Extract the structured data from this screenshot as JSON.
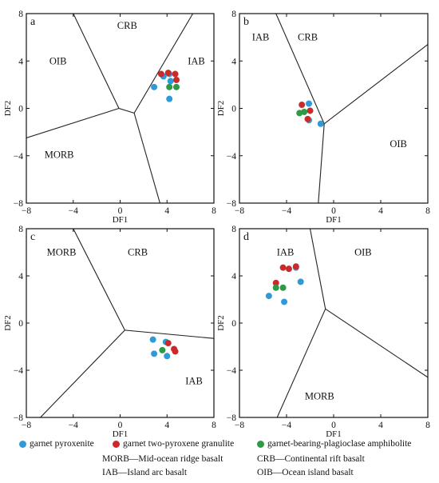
{
  "colors": {
    "garnet_pyroxenite": "#2f9ad8",
    "garnet_two_pyroxene_granulite": "#cc2a2a",
    "garnet_bearing_plagioclase_amphibolite": "#2e9a46",
    "boundary_line": "#222222",
    "frame": "#111111"
  },
  "chart_data": [
    {
      "panel": "a",
      "type": "scatter",
      "xlabel": "DF1",
      "ylabel": "DF2",
      "xlim": [
        -8,
        8
      ],
      "ylim": [
        -8,
        8
      ],
      "xticks": [
        -8,
        -4,
        0,
        4,
        8
      ],
      "yticks": [
        -8,
        -4,
        0,
        4,
        8
      ],
      "field_labels": [
        {
          "text": "CRB",
          "x": 0.6,
          "y": 7
        },
        {
          "text": "OIB",
          "x": -5.3,
          "y": 4
        },
        {
          "text": "IAB",
          "x": 6.5,
          "y": 4
        },
        {
          "text": "MORB",
          "x": -5.2,
          "y": -3.9
        }
      ],
      "boundaries": [
        [
          [
            -4,
            8
          ],
          [
            -0.1,
            0
          ],
          [
            1.2,
            -0.4
          ],
          [
            6.2,
            8
          ]
        ],
        [
          [
            -8,
            -2.5
          ],
          [
            -0.1,
            0
          ]
        ],
        [
          [
            1.2,
            -0.4
          ],
          [
            3.4,
            -8
          ]
        ]
      ],
      "series": [
        {
          "key": "garnet_pyroxenite",
          "points": [
            [
              3.7,
              2.7
            ],
            [
              4.2,
              2.9
            ],
            [
              4.3,
              2.3
            ],
            [
              2.9,
              1.8
            ],
            [
              4.2,
              0.8
            ]
          ]
        },
        {
          "key": "garnet_two_pyroxene_granulite",
          "points": [
            [
              3.5,
              2.9
            ],
            [
              4.1,
              3.0
            ],
            [
              4.7,
              2.9
            ],
            [
              4.8,
              2.4
            ]
          ]
        },
        {
          "key": "garnet_bearing_plagioclase_amphibolite",
          "points": [
            [
              4.2,
              1.8
            ],
            [
              4.8,
              1.8
            ]
          ]
        }
      ]
    },
    {
      "panel": "b",
      "type": "scatter",
      "xlabel": "DF1",
      "ylabel": "DF2",
      "xlim": [
        -8,
        8
      ],
      "ylim": [
        -8,
        8
      ],
      "xticks": [
        -8,
        -4,
        0,
        4,
        8
      ],
      "yticks": [
        -8,
        -4,
        0,
        4,
        8
      ],
      "field_labels": [
        {
          "text": "IAB",
          "x": -6.2,
          "y": 6
        },
        {
          "text": "CRB",
          "x": -2.2,
          "y": 6
        },
        {
          "text": "OIB",
          "x": 5.5,
          "y": -3
        }
      ],
      "boundaries": [
        [
          [
            -4.9,
            8
          ],
          [
            -0.8,
            -1.3
          ],
          [
            8,
            5.4
          ]
        ],
        [
          [
            -0.8,
            -1.3
          ],
          [
            -1.3,
            -8
          ]
        ]
      ],
      "series": [
        {
          "key": "garnet_pyroxenite",
          "points": [
            [
              -2.1,
              0.4
            ],
            [
              -2.1,
              -1.0
            ],
            [
              -1.1,
              -1.3
            ]
          ]
        },
        {
          "key": "garnet_two_pyroxene_granulite",
          "points": [
            [
              -2.7,
              0.3
            ],
            [
              -2.0,
              -0.2
            ],
            [
              -2.2,
              -0.9
            ]
          ]
        },
        {
          "key": "garnet_bearing_plagioclase_amphibolite",
          "points": [
            [
              -2.9,
              -0.4
            ],
            [
              -2.5,
              -0.3
            ]
          ]
        }
      ]
    },
    {
      "panel": "c",
      "type": "scatter",
      "xlabel": "DF1",
      "ylabel": "DF2",
      "xlim": [
        -8,
        8
      ],
      "ylim": [
        -8,
        8
      ],
      "xticks": [
        -8,
        -4,
        0,
        4,
        8
      ],
      "yticks": [
        -8,
        -4,
        0,
        4,
        8
      ],
      "field_labels": [
        {
          "text": "MORB",
          "x": -5,
          "y": 6
        },
        {
          "text": "CRB",
          "x": 1.5,
          "y": 6
        },
        {
          "text": "IAB",
          "x": 6.3,
          "y": -4.9
        }
      ],
      "boundaries": [
        [
          [
            -4,
            8
          ],
          [
            0.4,
            -0.6
          ],
          [
            8,
            -1.3
          ]
        ],
        [
          [
            0.4,
            -0.6
          ],
          [
            -6.8,
            -8
          ]
        ]
      ],
      "series": [
        {
          "key": "garnet_pyroxenite",
          "points": [
            [
              2.8,
              -1.4
            ],
            [
              3.9,
              -1.6
            ],
            [
              2.9,
              -2.6
            ],
            [
              4.0,
              -2.8
            ]
          ]
        },
        {
          "key": "garnet_two_pyroxene_granulite",
          "points": [
            [
              4.1,
              -1.7
            ],
            [
              4.6,
              -2.2
            ],
            [
              4.7,
              -2.4
            ]
          ]
        },
        {
          "key": "garnet_bearing_plagioclase_amphibolite",
          "points": [
            [
              3.6,
              -2.3
            ]
          ]
        }
      ]
    },
    {
      "panel": "d",
      "type": "scatter",
      "xlabel": "DF1",
      "ylabel": "DF2",
      "xlim": [
        -8,
        8
      ],
      "ylim": [
        -8,
        8
      ],
      "xticks": [
        -8,
        -4,
        0,
        4,
        8
      ],
      "yticks": [
        -8,
        -4,
        0,
        4,
        8
      ],
      "field_labels": [
        {
          "text": "IAB",
          "x": -4.1,
          "y": 6
        },
        {
          "text": "OIB",
          "x": 2.5,
          "y": 6
        },
        {
          "text": "MORB",
          "x": -1.2,
          "y": -6.2
        }
      ],
      "boundaries": [
        [
          [
            -2,
            8
          ],
          [
            -0.7,
            1.2
          ],
          [
            8,
            -4.6
          ]
        ],
        [
          [
            -0.7,
            1.2
          ],
          [
            -4.8,
            -8
          ]
        ]
      ],
      "series": [
        {
          "key": "garnet_pyroxenite",
          "points": [
            [
              -3.2,
              4.7
            ],
            [
              -2.8,
              3.5
            ],
            [
              -5.5,
              2.3
            ],
            [
              -4.2,
              1.8
            ]
          ]
        },
        {
          "key": "garnet_two_pyroxene_granulite",
          "points": [
            [
              -4.3,
              4.7
            ],
            [
              -3.8,
              4.6
            ],
            [
              -3.2,
              4.8
            ],
            [
              -4.9,
              3.4
            ]
          ]
        },
        {
          "key": "garnet_bearing_plagioclase_amphibolite",
          "points": [
            [
              -4.9,
              3.0
            ],
            [
              -4.3,
              3.0
            ]
          ]
        }
      ]
    }
  ],
  "legend": [
    {
      "key": "garnet_pyroxenite",
      "label": "garnet pyroxenite"
    },
    {
      "key": "garnet_two_pyroxene_granulite",
      "label": "garnet two-pyroxene granulite"
    },
    {
      "key": "garnet_bearing_plagioclase_amphibolite",
      "label": "garnet-bearing-plagioclase amphibolite"
    }
  ],
  "abbreviations": [
    "MORB—Mid-ocean ridge basalt",
    "CRB—Continental rift basalt",
    "IAB—Island  arc basalt",
    "OIB—Ocean island basalt"
  ]
}
